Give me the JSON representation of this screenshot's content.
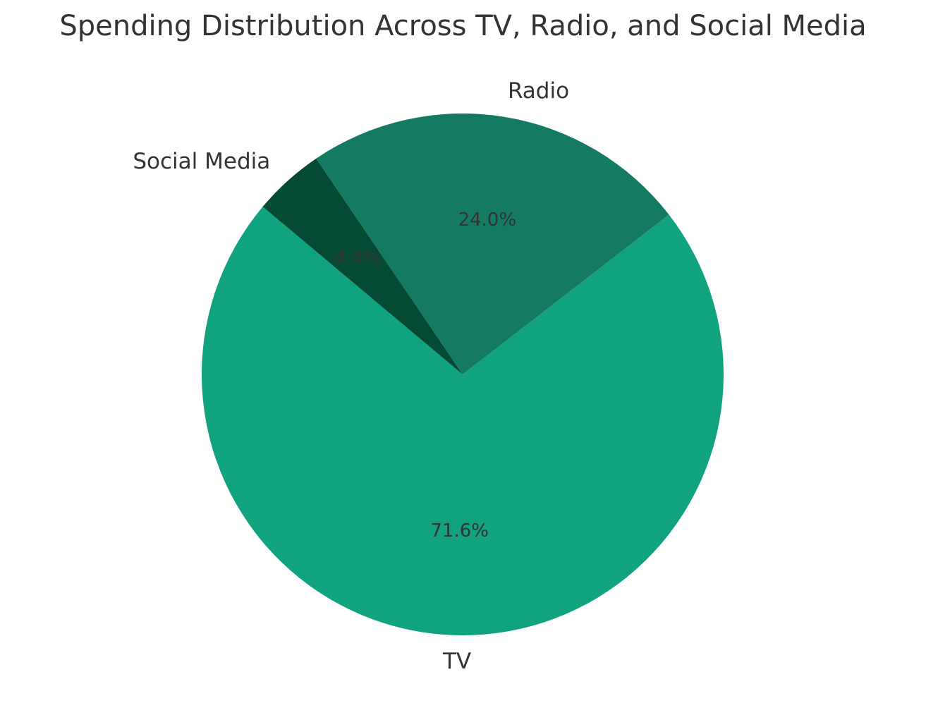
{
  "chart_data": {
    "type": "pie",
    "title": "Spending Distribution Across TV, Radio, and Social Media",
    "categories": [
      "TV",
      "Radio",
      "Social Media"
    ],
    "values": [
      71.6,
      24.0,
      4.4
    ],
    "value_labels": [
      "71.6%",
      "24.0%",
      "4.4%"
    ],
    "colors": [
      "#11a37f",
      "#157a62",
      "#044a35"
    ],
    "text_color": "#333333",
    "start_angle_deg": 140,
    "direction": "counterclockwise",
    "legend": "none"
  }
}
